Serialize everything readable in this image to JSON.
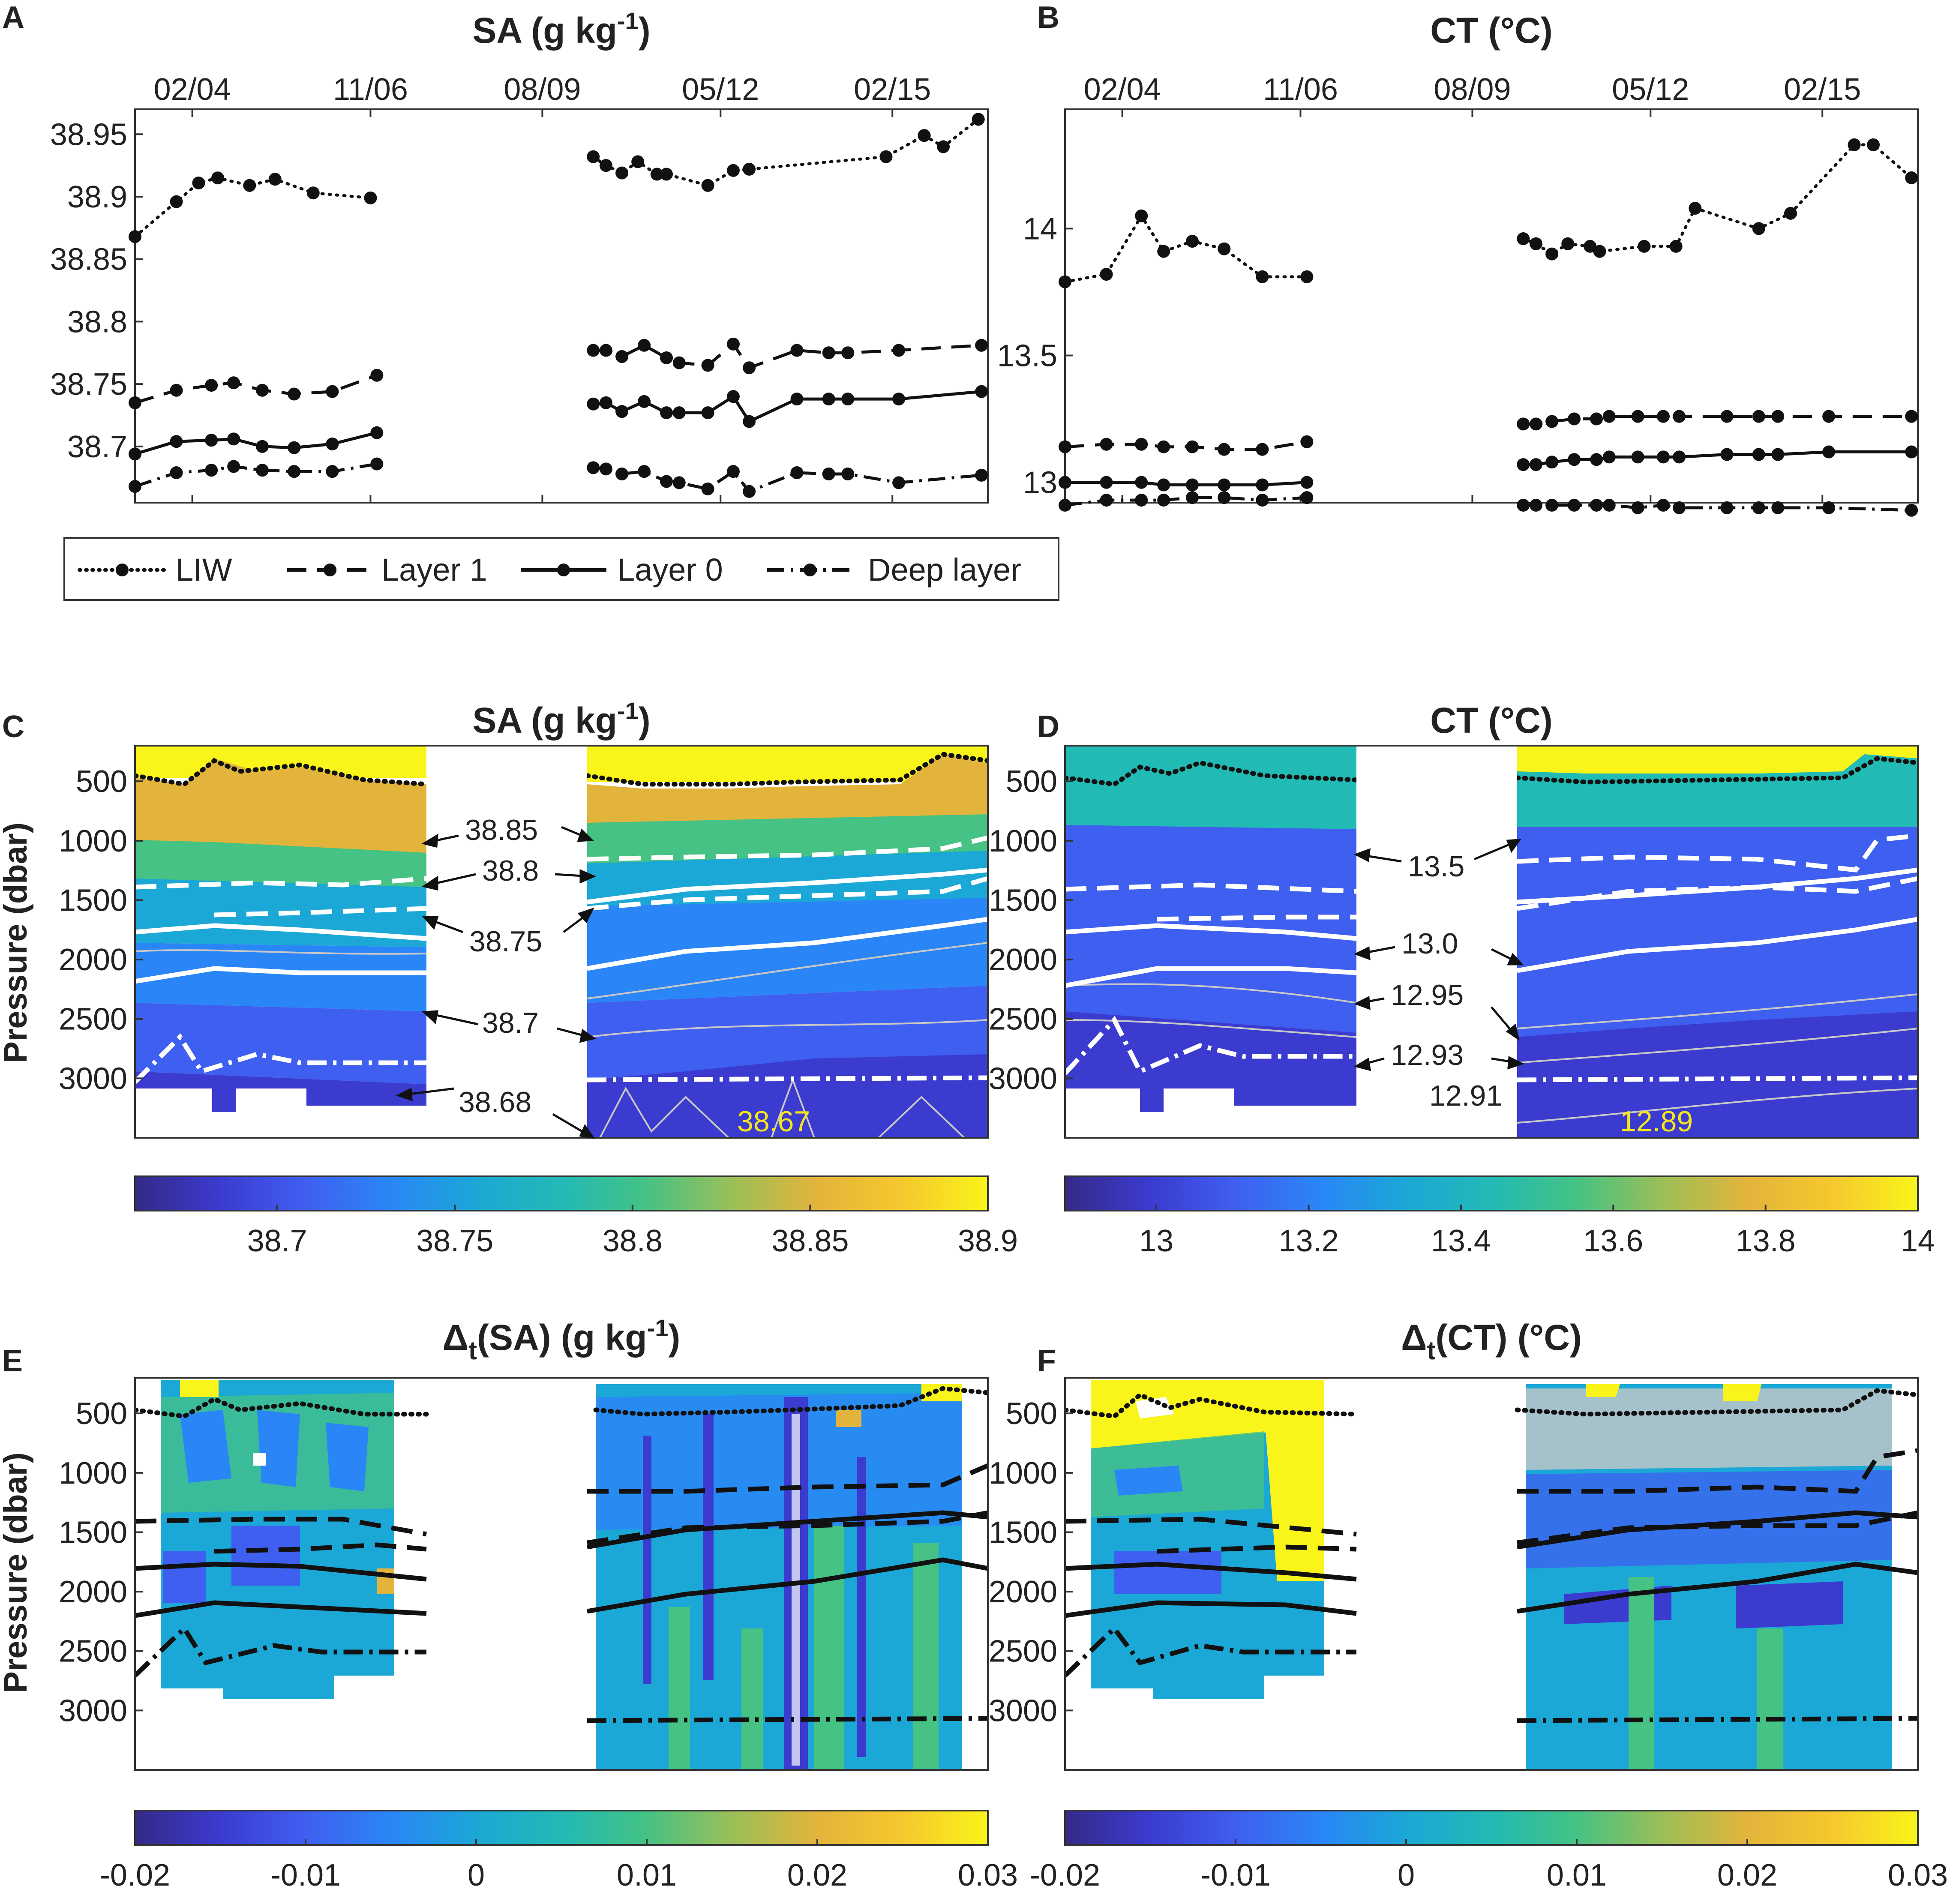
{
  "colors": {
    "parula": [
      "#352a87",
      "#3b3bcf",
      "#3f5ff0",
      "#2a86f6",
      "#1ba8d6",
      "#22bab5",
      "#45c284",
      "#9bbf58",
      "#e3b43c",
      "#f6c82d",
      "#f9f41a"
    ],
    "neutral": "#c8c8c8"
  },
  "chart_data": [
    {
      "id": "A",
      "type": "line",
      "panel_label": "A",
      "title_main": "SA (g kg",
      "title_sup": "-1",
      "title_end": ")",
      "x_tick_labels": [
        "02/04",
        "11/06",
        "08/09",
        "05/12",
        "02/15"
      ],
      "x_tick_values": [
        2004.1,
        2006.9,
        2009.6,
        2012.4,
        2015.1
      ],
      "xlim": [
        2003.2,
        2016.6
      ],
      "ylim": [
        38.655,
        38.97
      ],
      "y_ticks": [
        38.7,
        38.75,
        38.8,
        38.85,
        38.9,
        38.95
      ],
      "y_tick_labels": [
        "38.7",
        "38.75",
        "38.8",
        "38.85",
        "38.9",
        "38.95"
      ],
      "series": [
        {
          "name": "LIW",
          "style": "dotted",
          "segments": [
            {
              "x": [
                2003.2,
                2003.85,
                2004.2,
                2004.5,
                2005.0,
                2005.4,
                2006.0,
                2006.9
              ],
              "y": [
                38.868,
                38.896,
                38.911,
                38.915,
                38.909,
                38.914,
                38.903,
                38.899
              ]
            },
            {
              "x": [
                2010.4,
                2010.6,
                2010.85,
                2011.1,
                2011.4,
                2011.55,
                2012.2,
                2012.6,
                2012.85,
                2015.0,
                2015.6
              ],
              "y": [
                38.932,
                38.925,
                38.919,
                38.928,
                38.918,
                38.918,
                38.909,
                38.921,
                38.922,
                38.932,
                38.949
              ]
            },
            {
              "x": [
                2015.6,
                2015.9,
                2016.45
              ],
              "y": [
                38.949,
                38.94,
                38.962
              ]
            }
          ]
        },
        {
          "name": "Layer 1",
          "style": "dashed",
          "segments": [
            {
              "x": [
                2003.2,
                2003.85,
                2004.4,
                2004.75,
                2005.2,
                2005.7,
                2006.3,
                2007.0
              ],
              "y": [
                38.735,
                38.745,
                38.749,
                38.751,
                38.745,
                38.742,
                38.744,
                38.757
              ]
            },
            {
              "x": [
                2010.4,
                2010.6,
                2010.85,
                2011.2,
                2011.55,
                2011.75,
                2012.2,
                2012.6,
                2012.85,
                2013.6,
                2014.1,
                2014.4,
                2015.2,
                2016.5
              ],
              "y": [
                38.777,
                38.777,
                38.772,
                38.781,
                38.771,
                38.767,
                38.765,
                38.782,
                38.763,
                38.777,
                38.775,
                38.775,
                38.777,
                38.781
              ]
            }
          ]
        },
        {
          "name": "Layer 0",
          "style": "solid",
          "segments": [
            {
              "x": [
                2003.2,
                2003.85,
                2004.4,
                2004.75,
                2005.2,
                2005.7,
                2006.3,
                2007.0
              ],
              "y": [
                38.694,
                38.704,
                38.705,
                38.706,
                38.7,
                38.699,
                38.702,
                38.711
              ]
            },
            {
              "x": [
                2010.4,
                2010.6,
                2010.85,
                2011.2,
                2011.55,
                2011.75,
                2012.2,
                2012.6,
                2012.85,
                2013.6,
                2014.1,
                2014.4,
                2015.2,
                2016.5
              ],
              "y": [
                38.734,
                38.735,
                38.728,
                38.736,
                38.727,
                38.727,
                38.727,
                38.74,
                38.72,
                38.738,
                38.738,
                38.738,
                38.738,
                38.744
              ]
            }
          ]
        },
        {
          "name": "Deep layer",
          "style": "dashdot",
          "segments": [
            {
              "x": [
                2003.2,
                2003.85,
                2004.4,
                2004.75,
                2005.2,
                2005.7,
                2006.3,
                2007.0
              ],
              "y": [
                38.668,
                38.679,
                38.681,
                38.684,
                38.681,
                38.68,
                38.68,
                38.686
              ]
            },
            {
              "x": [
                2010.4,
                2010.6,
                2010.85,
                2011.2,
                2011.55,
                2011.75,
                2012.2,
                2012.6,
                2012.85,
                2013.6,
                2014.1,
                2014.4,
                2015.2,
                2016.5
              ],
              "y": [
                38.683,
                38.682,
                38.678,
                38.68,
                38.672,
                38.671,
                38.666,
                38.68,
                38.664,
                38.679,
                38.678,
                38.678,
                38.671,
                38.677
              ]
            }
          ]
        }
      ],
      "legend": [
        "LIW",
        "Layer 1",
        "Layer 0",
        "Deep layer"
      ]
    },
    {
      "id": "B",
      "type": "line",
      "panel_label": "B",
      "title_main": "CT (°C)",
      "x_tick_labels": [
        "02/04",
        "11/06",
        "08/09",
        "05/12",
        "02/15"
      ],
      "x_tick_values": [
        2004.1,
        2006.9,
        2009.6,
        2012.4,
        2015.1
      ],
      "xlim": [
        2003.2,
        2016.6
      ],
      "ylim": [
        12.92,
        14.47
      ],
      "y_ticks": [
        13.0,
        13.5,
        14.0
      ],
      "y_tick_labels": [
        "13",
        "13.5",
        "14"
      ],
      "series": [
        {
          "name": "LIW",
          "style": "dotted",
          "segments": [
            {
              "x": [
                2003.2,
                2003.85,
                2004.4,
                2004.75,
                2005.2,
                2005.7,
                2006.3,
                2007.0
              ],
              "y": [
                13.79,
                13.82,
                14.05,
                13.91,
                13.95,
                13.92,
                13.81,
                13.81
              ]
            },
            {
              "x": [
                2010.4,
                2010.6,
                2010.85,
                2011.1,
                2011.45,
                2011.6,
                2012.3,
                2012.8,
                2013.1,
                2014.1,
                2014.6,
                2015.6,
                2015.9,
                2016.5
              ],
              "y": [
                13.96,
                13.94,
                13.9,
                13.94,
                13.93,
                13.91,
                13.93,
                13.93,
                14.08,
                14.0,
                14.06,
                14.33,
                14.33,
                14.2
              ]
            }
          ]
        },
        {
          "name": "Layer 1",
          "style": "dashed",
          "segments": [
            {
              "x": [
                2003.2,
                2003.85,
                2004.4,
                2004.75,
                2005.2,
                2005.7,
                2006.3,
                2007.0
              ],
              "y": [
                13.14,
                13.15,
                13.15,
                13.14,
                13.14,
                13.13,
                13.13,
                13.16
              ]
            },
            {
              "x": [
                2010.4,
                2010.6,
                2010.85,
                2011.2,
                2011.55,
                2011.75,
                2012.2,
                2012.6,
                2012.85,
                2013.6,
                2014.1,
                2014.4,
                2015.2,
                2016.5
              ],
              "y": [
                13.23,
                13.23,
                13.24,
                13.25,
                13.25,
                13.26,
                13.26,
                13.26,
                13.26,
                13.26,
                13.26,
                13.26,
                13.26,
                13.26
              ]
            }
          ]
        },
        {
          "name": "Layer 0",
          "style": "solid",
          "segments": [
            {
              "x": [
                2003.2,
                2003.85,
                2004.4,
                2004.75,
                2005.2,
                2005.7,
                2006.3,
                2007.0
              ],
              "y": [
                13.0,
                13.0,
                13.0,
                12.99,
                12.99,
                12.99,
                12.99,
                13.0
              ]
            },
            {
              "x": [
                2010.4,
                2010.6,
                2010.85,
                2011.2,
                2011.55,
                2011.75,
                2012.2,
                2012.6,
                2012.85,
                2013.6,
                2014.1,
                2014.4,
                2015.2,
                2016.5
              ],
              "y": [
                13.07,
                13.07,
                13.08,
                13.09,
                13.09,
                13.1,
                13.1,
                13.1,
                13.1,
                13.11,
                13.11,
                13.11,
                13.12,
                13.12
              ]
            }
          ]
        },
        {
          "name": "Deep layer",
          "style": "dashdot",
          "segments": [
            {
              "x": [
                2003.2,
                2003.85,
                2004.4,
                2004.75,
                2005.2,
                2005.7,
                2006.3,
                2007.0
              ],
              "y": [
                12.91,
                12.93,
                12.93,
                12.93,
                12.94,
                12.94,
                12.93,
                12.94
              ]
            },
            {
              "x": [
                2010.4,
                2010.6,
                2010.85,
                2011.2,
                2011.55,
                2011.75,
                2012.2,
                2012.6,
                2012.85,
                2013.6,
                2014.1,
                2014.4,
                2015.2,
                2016.5
              ],
              "y": [
                12.91,
                12.91,
                12.91,
                12.91,
                12.91,
                12.91,
                12.9,
                12.91,
                12.9,
                12.9,
                12.9,
                12.9,
                12.9,
                12.89
              ]
            }
          ]
        }
      ]
    },
    {
      "id": "C",
      "type": "heatmap",
      "panel_label": "C",
      "title_main": "SA (g kg",
      "title_sup": "-1",
      "title_end": ")",
      "ylabel": "Pressure (dbar)",
      "y_ticks": [
        500,
        1000,
        1500,
        2000,
        2500,
        3000
      ],
      "y_tick_labels": [
        "500",
        "1000",
        "1500",
        "2000",
        "2500",
        "3000"
      ],
      "ylim": [
        200,
        3500
      ],
      "xlim": [
        2003.2,
        2016.6
      ],
      "data_periods": [
        [
          2003.2,
          2007.8
        ],
        [
          2010.3,
          2016.6
        ]
      ],
      "bands_first_period": [
        {
          "from": 200,
          "to": 460,
          "color_index": 10
        },
        {
          "from": 460,
          "to": 850,
          "color_index": 8
        },
        {
          "from": 850,
          "to": 1150,
          "color_index": 6
        },
        {
          "from": 1150,
          "to": 1500,
          "color_index": 4
        },
        {
          "from": 1500,
          "to": 1820,
          "color_index": 3
        },
        {
          "from": 1820,
          "to": 2250,
          "color_index": 2
        },
        {
          "from": 2250,
          "to": 3050,
          "color_index": 1
        }
      ],
      "bands_second_period": [
        {
          "from": 200,
          "to": 520,
          "color_index": 10
        },
        {
          "from": 520,
          "to": 900,
          "color_index": 8
        },
        {
          "from": 900,
          "to": 1250,
          "color_index": 6
        },
        {
          "from": 1250,
          "to": 1550,
          "color_index": 4
        },
        {
          "from": 1550,
          "to": 2050,
          "color_index": 2
        },
        {
          "from": 2050,
          "to": 3500,
          "color_index": 1
        }
      ],
      "colorbar": {
        "ticks": [
          38.7,
          38.75,
          38.8,
          38.85,
          38.9
        ],
        "tick_labels": [
          "38.7",
          "38.75",
          "38.8",
          "38.85",
          "38.9"
        ],
        "range": [
          38.66,
          38.9
        ]
      },
      "contour_labels": [
        "38.85",
        "38.8",
        "38.75",
        "38.7",
        "38.68"
      ],
      "highlight_label": "38.67"
    },
    {
      "id": "D",
      "type": "heatmap",
      "panel_label": "D",
      "title_main": "CT (°C)",
      "y_ticks": [
        500,
        1000,
        1500,
        2000,
        2500,
        3000
      ],
      "y_tick_labels": [
        "500",
        "1000",
        "1500",
        "2000",
        "2500",
        "3000"
      ],
      "ylim": [
        200,
        3500
      ],
      "xlim": [
        2003.2,
        2016.6
      ],
      "data_periods": [
        [
          2003.2,
          2007.8
        ],
        [
          2010.3,
          2016.6
        ]
      ],
      "bands_first_period": [
        {
          "from": 200,
          "to": 880,
          "color_index": 6
        },
        {
          "from": 880,
          "to": 3050,
          "color_index": 2
        }
      ],
      "bands_second_period": [
        {
          "from": 200,
          "to": 880,
          "color_index": 6
        },
        {
          "from": 880,
          "to": 3500,
          "color_index": 2
        }
      ],
      "colorbar": {
        "ticks": [
          13.0,
          13.2,
          13.4,
          13.6,
          13.8,
          14.0
        ],
        "tick_labels": [
          "13",
          "13.2",
          "13.4",
          "13.6",
          "13.8",
          "14"
        ],
        "range": [
          12.88,
          14.0
        ]
      },
      "contour_labels": [
        "13.5",
        "13.0",
        "12.95",
        "12.93",
        "12.91"
      ],
      "highlight_label": "12.89"
    },
    {
      "id": "E",
      "type": "heatmap",
      "panel_label": "E",
      "title_main": "Δ",
      "title_sub": "t",
      "title_rest": "(SA) (g kg",
      "title_sup": "-1",
      "title_end": ")",
      "ylabel": "Pressure (dbar)",
      "y_ticks": [
        500,
        1000,
        1500,
        2000,
        2500,
        3000
      ],
      "y_tick_labels": [
        "500",
        "1000",
        "1500",
        "2000",
        "2500",
        "3000"
      ],
      "ylim": [
        200,
        3500
      ],
      "xlim": [
        2003.2,
        2016.6
      ],
      "colorbar": {
        "ticks": [
          -0.02,
          -0.01,
          0,
          0.01,
          0.02,
          0.03
        ],
        "tick_labels": [
          "-0.02",
          "-0.01",
          "0",
          "0.01",
          "0.02",
          "0.03"
        ],
        "range": [
          -0.02,
          0.03
        ]
      }
    },
    {
      "id": "F",
      "type": "heatmap",
      "panel_label": "F",
      "title_main": "Δ",
      "title_sub": "t",
      "title_rest": "(CT) (°C)",
      "y_ticks": [
        500,
        1000,
        1500,
        2000,
        2500,
        3000
      ],
      "y_tick_labels": [
        "500",
        "1000",
        "1500",
        "2000",
        "2500",
        "3000"
      ],
      "ylim": [
        200,
        3500
      ],
      "xlim": [
        2003.2,
        2016.6
      ],
      "colorbar": {
        "ticks": [
          -0.02,
          -0.01,
          0,
          0.01,
          0.02,
          0.03
        ],
        "tick_labels": [
          "-0.02",
          "-0.01",
          "0",
          "0.01",
          "0.02",
          "0.03"
        ],
        "range": [
          -0.02,
          0.03
        ]
      }
    }
  ]
}
